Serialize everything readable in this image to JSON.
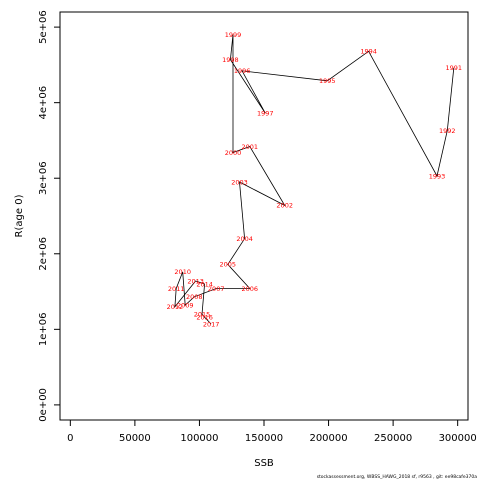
{
  "chart_data": {
    "type": "line",
    "xlabel": "SSB",
    "ylabel": "R(age 0)",
    "xlim": [
      -8000,
      308000
    ],
    "ylim": [
      -200000,
      5200000
    ],
    "x_ticks": [
      0,
      50000,
      100000,
      150000,
      200000,
      250000,
      300000
    ],
    "x_tick_labels": [
      "0",
      "50000",
      "100000",
      "150000",
      "200000",
      "250000",
      "300000"
    ],
    "y_ticks": [
      0,
      1000000,
      2000000,
      3000000,
      4000000,
      5000000
    ],
    "y_tick_labels": [
      "0e+00",
      "1e+06",
      "2e+06",
      "3e+06",
      "4e+06",
      "5e+06"
    ],
    "grid": false,
    "line_color": "#000000",
    "label_color": "#ff0000",
    "footer": "stockassessment.org, WBSS_HAWG_2018 sf, r9563 , git: ee98cafe370a",
    "points": [
      {
        "label": "1991",
        "x": 297000,
        "y": 4460000
      },
      {
        "label": "1992",
        "x": 292000,
        "y": 3630000
      },
      {
        "label": "1993",
        "x": 284000,
        "y": 3030000
      },
      {
        "label": "1994",
        "x": 231000,
        "y": 4680000
      },
      {
        "label": "1995",
        "x": 199000,
        "y": 4290000
      },
      {
        "label": "1996",
        "x": 133000,
        "y": 4420000
      },
      {
        "label": "1997",
        "x": 151000,
        "y": 3860000
      },
      {
        "label": "1998",
        "x": 124000,
        "y": 4570000
      },
      {
        "label": "1999",
        "x": 126000,
        "y": 4900000
      },
      {
        "label": "2000",
        "x": 126000,
        "y": 3340000
      },
      {
        "label": "2001",
        "x": 139000,
        "y": 3420000
      },
      {
        "label": "2002",
        "x": 166000,
        "y": 2640000
      },
      {
        "label": "2003",
        "x": 131000,
        "y": 2950000
      },
      {
        "label": "2004",
        "x": 135000,
        "y": 2200000
      },
      {
        "label": "2005",
        "x": 122000,
        "y": 1860000
      },
      {
        "label": "2006",
        "x": 139000,
        "y": 1540000
      },
      {
        "label": "2007",
        "x": 113000,
        "y": 1540000
      },
      {
        "label": "2008",
        "x": 96000,
        "y": 1430000
      },
      {
        "label": "2009",
        "x": 89000,
        "y": 1320000
      },
      {
        "label": "2010",
        "x": 87000,
        "y": 1760000
      },
      {
        "label": "2011",
        "x": 82000,
        "y": 1540000
      },
      {
        "label": "2012",
        "x": 81000,
        "y": 1300000
      },
      {
        "label": "2013",
        "x": 97000,
        "y": 1640000
      },
      {
        "label": "2014",
        "x": 104000,
        "y": 1600000
      },
      {
        "label": "2015",
        "x": 102000,
        "y": 1200000
      },
      {
        "label": "2016",
        "x": 104000,
        "y": 1160000
      },
      {
        "label": "2017",
        "x": 109000,
        "y": 1070000
      }
    ]
  }
}
